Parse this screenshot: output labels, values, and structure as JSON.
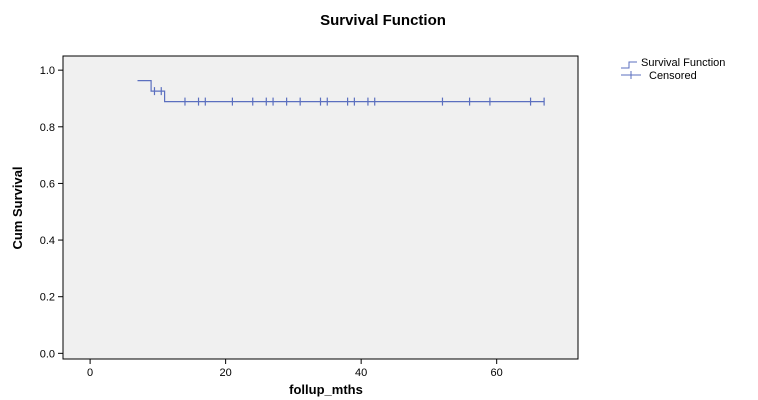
{
  "chart_data": {
    "type": "line",
    "title": "Survival Function",
    "xlabel": "follup_mths",
    "ylabel": "Cum Survival",
    "xlim": [
      -4,
      72
    ],
    "ylim": [
      -0.02,
      1.05
    ],
    "xticks": [
      0,
      20,
      40,
      60
    ],
    "xtick_labels": [
      "0",
      "20",
      "40",
      "60"
    ],
    "yticks": [
      0.0,
      0.2,
      0.4,
      0.6,
      0.8,
      1.0
    ],
    "ytick_labels": [
      "0.0",
      "0.2",
      "0.4",
      "0.6",
      "0.8",
      "1.0"
    ],
    "grid": false,
    "legend_position": "right",
    "series": [
      {
        "name": "Survival Function",
        "color": "#5b6fbf",
        "step_points": [
          [
            7,
            0.963
          ],
          [
            9,
            0.963
          ],
          [
            9,
            0.926
          ],
          [
            11,
            0.926
          ],
          [
            11,
            0.889
          ],
          [
            67,
            0.889
          ]
        ]
      },
      {
        "name": "Censored",
        "color": "#5b6fbf",
        "points": [
          [
            9.5,
            0.926
          ],
          [
            10.5,
            0.926
          ],
          [
            14,
            0.889
          ],
          [
            16,
            0.889
          ],
          [
            17,
            0.889
          ],
          [
            21,
            0.889
          ],
          [
            24,
            0.889
          ],
          [
            26,
            0.889
          ],
          [
            27,
            0.889
          ],
          [
            29,
            0.889
          ],
          [
            31,
            0.889
          ],
          [
            34,
            0.889
          ],
          [
            35,
            0.889
          ],
          [
            38,
            0.889
          ],
          [
            39,
            0.889
          ],
          [
            41,
            0.889
          ],
          [
            42,
            0.889
          ],
          [
            52,
            0.889
          ],
          [
            56,
            0.889
          ],
          [
            59,
            0.889
          ],
          [
            65,
            0.889
          ],
          [
            67,
            0.889
          ]
        ]
      }
    ]
  }
}
